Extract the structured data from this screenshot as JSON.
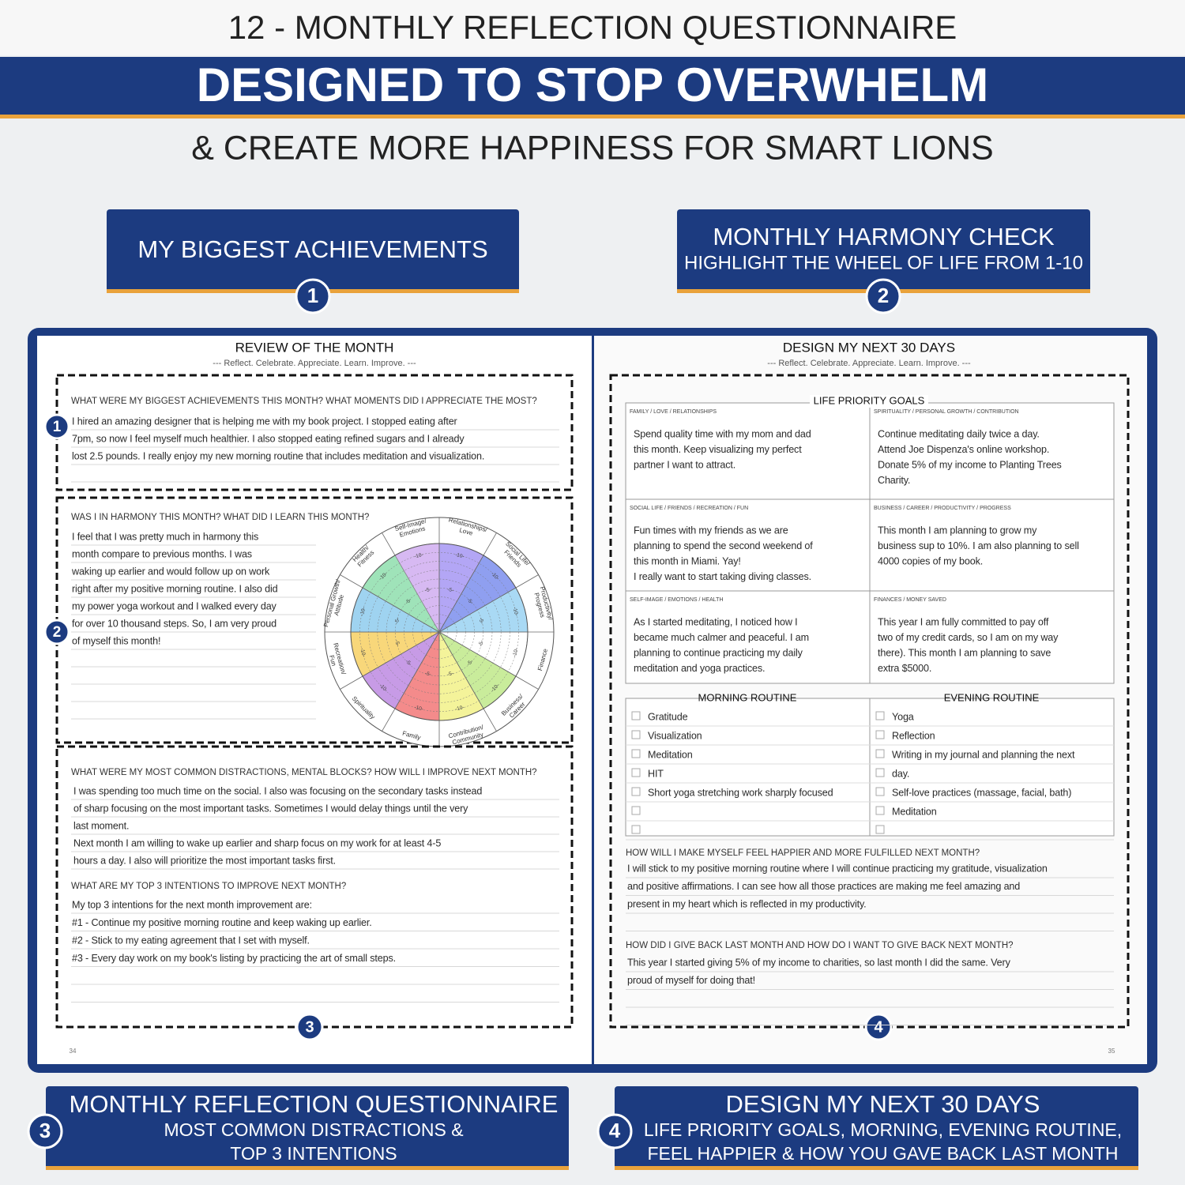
{
  "header": {
    "line1": "12 - MONTHLY REFLECTION QUESTIONNAIRE",
    "banner": "DESIGNED TO STOP OVERWHELM",
    "line3": "& CREATE MORE HAPPINESS FOR SMART LIONS"
  },
  "callouts": [
    {
      "number": "1",
      "lines": [
        "MY BIGGEST ACHIEVEMENTS"
      ]
    },
    {
      "number": "2",
      "lines": [
        "MONTHLY HARMONY CHECK",
        "HIGHLIGHT THE WHEEL OF LIFE FROM 1-10"
      ]
    },
    {
      "number": "3",
      "lines": [
        "MONTHLY REFLECTION QUESTIONNAIRE",
        "MOST COMMON DISTRACTIONS &",
        "TOP 3 INTENTIONS"
      ]
    },
    {
      "number": "4",
      "lines": [
        "DESIGN MY NEXT 30 DAYS",
        "LIFE PRIORITY GOALS, MORNING, EVENING ROUTINE,",
        "FEEL HAPPIER & HOW YOU GAVE BACK LAST MONTH"
      ]
    }
  ],
  "left_page": {
    "title": "REVIEW OF THE MONTH",
    "subtitle": "--- Reflect. Celebrate. Appreciate. Learn. Improve. ---",
    "page_number": "34",
    "sections": [
      {
        "question": "WHAT WERE MY BIGGEST ACHIEVEMENTS THIS MONTH? WHAT MOMENTS DID I APPRECIATE THE MOST?",
        "answer": [
          "I hired an amazing designer that is helping me with my book project. I stopped eating after",
          "7pm, so now I feel myself much healthier. I also stopped eating refined sugars and I already",
          "lost 2.5 pounds. I really enjoy my new morning routine that includes meditation and visualization."
        ]
      },
      {
        "question": "WAS I IN HARMONY THIS MONTH? WHAT DID I LEARN THIS MONTH?",
        "answer": [
          "I feel that I was pretty much in harmony this",
          "month compare to previous months. I was",
          "waking up earlier and would follow up on work",
          "right after my positive morning routine. I also did",
          "my power yoga workout and I walked every day",
          "for over 10 thousand steps. So, I am very proud",
          "of myself this month!"
        ]
      },
      {
        "question": "WHAT WERE MY MOST COMMON DISTRACTIONS, MENTAL BLOCKS? HOW WILL I IMPROVE NEXT MONTH?",
        "answer": [
          "I was spending too much time on the social. I also was focusing on the secondary tasks instead",
          "of sharp focusing on the most important tasks. Sometimes I would delay things until the very",
          "last moment.",
          "Next month I am willing to wake up earlier and sharp focus on my work for at least 4-5",
          "hours a day. I also will prioritize the most important tasks first."
        ]
      },
      {
        "question": "WHAT ARE MY TOP 3 INTENTIONS TO IMPROVE NEXT MONTH?",
        "answer": [
          "My top 3 intentions for the next month improvement are:",
          "#1 - Continue my positive morning routine and keep waking up earlier.",
          "#2 - Stick to my eating agreement that I set with myself.",
          "#3 - Every day work on my book's listing by practicing the art of small steps."
        ]
      }
    ],
    "wheel": {
      "labels": [
        [
          "Self-Image/",
          "Emotions"
        ],
        [
          "Relationships/",
          "Love"
        ],
        [
          "Social Life/",
          "Friends"
        ],
        [
          "Productivity/",
          "Progress"
        ],
        [
          "Finance"
        ],
        [
          "Business/",
          "Career"
        ],
        [
          "Contribution/",
          "Community"
        ],
        [
          "Family"
        ],
        [
          "Spirituality"
        ],
        [
          "Recreation/",
          "Fun"
        ],
        [
          "Personal Growth/",
          "Attitude"
        ],
        [
          "Health/",
          "Fitness"
        ]
      ],
      "scale": [
        "-10-",
        "-5-"
      ]
    }
  },
  "right_page": {
    "title": "DESIGN MY NEXT 30 DAYS",
    "subtitle": "--- Reflect. Celebrate. Appreciate. Learn. Improve. ---",
    "page_number": "35",
    "goals_heading": "LIFE PRIORITY GOALS",
    "goals": [
      {
        "label": "FAMILY / LOVE / RELATIONSHIPS",
        "lines": [
          "Spend quality time with my mom and dad",
          "this month. Keep visualizing my perfect",
          "partner I want to attract."
        ]
      },
      {
        "label": "SPIRITUALITY / PERSONAL GROWTH / CONTRIBUTION",
        "lines": [
          "Continue meditating daily twice a day.",
          "Attend Joe Dispenza's online workshop.",
          "Donate 5% of my income to Planting Trees",
          "Charity."
        ]
      },
      {
        "label": "SOCIAL LIFE / FRIENDS / RECREATION / FUN",
        "lines": [
          "Fun times with my friends as we are",
          "planning to spend the second weekend of",
          "this month in Miami. Yay!",
          "I really want to start taking diving classes."
        ]
      },
      {
        "label": "BUSINESS / CAREER / PRODUCTIVITY / PROGRESS",
        "lines": [
          "This month I am planning to grow my",
          "business sup to 10%. I am also planning to sell",
          "4000 copies of my book."
        ]
      },
      {
        "label": "SELF-IMAGE / EMOTIONS / HEALTH",
        "lines": [
          "As I started meditating, I noticed how I",
          "became much calmer and peaceful. I am",
          "planning to continue practicing my daily",
          "meditation and yoga practices."
        ]
      },
      {
        "label": "FINANCES / MONEY SAVED",
        "lines": [
          "This year I am fully committed to pay off",
          "two of my credit cards, so I am on my way",
          "there). This month I am planning to save",
          "extra $5000."
        ]
      }
    ],
    "morning": {
      "heading": "MORNING ROUTINE",
      "items": [
        [
          "Gratitude"
        ],
        [
          "Visualization"
        ],
        [
          "Meditation"
        ],
        [
          "HIT"
        ],
        [
          "Short yoga stretching work sharply focused"
        ]
      ]
    },
    "evening": {
      "heading": "EVENING ROUTINE",
      "items": [
        [
          "Yoga"
        ],
        [
          "Reflection"
        ],
        [
          "Writing in my journal and planning the next",
          "day."
        ],
        [
          "Self-love practices (massage, facial, bath)"
        ],
        [
          "Meditation"
        ]
      ]
    },
    "questions": [
      {
        "question": "HOW WILL I MAKE MYSELF FEEL HAPPIER AND MORE FULFILLED NEXT MONTH?",
        "answer": [
          "I will stick to my positive morning routine where I will continue practicing my gratitude, visualization",
          "and positive affirmations. I can see how all those practices are making me feel amazing and",
          "present in my heart which is reflected in my productivity."
        ]
      },
      {
        "question": "HOW DID I GIVE BACK LAST MONTH AND HOW DO I WANT TO GIVE BACK NEXT MONTH?",
        "answer": [
          "This year I started giving 5% of my income to charities, so last month I did the same. Very",
          "proud of myself for doing that!"
        ]
      }
    ]
  }
}
